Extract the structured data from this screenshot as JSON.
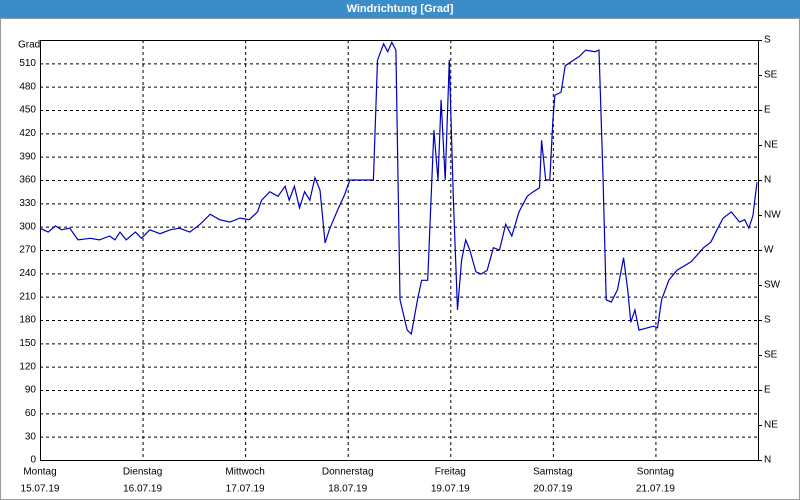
{
  "chart_data": {
    "type": "line",
    "title": "Windrichtung [Grad]",
    "y_label": "Grad",
    "xlim": [
      0,
      7
    ],
    "xticks": [
      {
        "value": 0,
        "label": "Montag",
        "date": "15.07.19"
      },
      {
        "value": 1,
        "label": "Dienstag",
        "date": "16.07.19"
      },
      {
        "value": 2,
        "label": "Mittwoch",
        "date": "17.07.19"
      },
      {
        "value": 3,
        "label": "Donnerstag",
        "date": "18.07.19"
      },
      {
        "value": 4,
        "label": "Freitag",
        "date": "19.07.19"
      },
      {
        "value": 5,
        "label": "Samstag",
        "date": "20.07.19"
      },
      {
        "value": 6,
        "label": "Sonntag",
        "date": "21.07.19"
      }
    ],
    "ylim": [
      0,
      540
    ],
    "yticks": [
      0,
      30,
      60,
      90,
      120,
      150,
      180,
      210,
      240,
      270,
      300,
      330,
      360,
      390,
      420,
      450,
      480,
      510
    ],
    "y2lim": [
      0,
      540
    ],
    "y2ticks": [
      {
        "value": 0,
        "label": "N"
      },
      {
        "value": 45,
        "label": "NE"
      },
      {
        "value": 90,
        "label": "E"
      },
      {
        "value": 135,
        "label": "SE"
      },
      {
        "value": 180,
        "label": "S"
      },
      {
        "value": 225,
        "label": "SW"
      },
      {
        "value": 270,
        "label": "W"
      },
      {
        "value": 315,
        "label": "NW"
      },
      {
        "value": 360,
        "label": "N"
      },
      {
        "value": 405,
        "label": "NE"
      },
      {
        "value": 450,
        "label": "E"
      },
      {
        "value": 495,
        "label": "SE"
      },
      {
        "value": 540,
        "label": "S"
      }
    ],
    "grid": true,
    "series": [
      {
        "color": "#0000c0",
        "x": [
          0.0,
          0.08,
          0.15,
          0.21,
          0.29,
          0.37,
          0.49,
          0.58,
          0.68,
          0.73,
          0.78,
          0.84,
          0.93,
          0.99,
          1.07,
          1.17,
          1.27,
          1.36,
          1.46,
          1.56,
          1.66,
          1.75,
          1.85,
          1.95,
          2.04,
          2.12,
          2.16,
          2.24,
          2.32,
          2.39,
          2.43,
          2.48,
          2.53,
          2.58,
          2.63,
          2.68,
          2.73,
          2.78,
          2.82,
          2.9,
          2.97,
          3.02,
          3.25,
          3.29,
          3.35,
          3.39,
          3.43,
          3.47,
          3.51,
          3.58,
          3.62,
          3.68,
          3.72,
          3.78,
          3.84,
          3.88,
          3.91,
          3.95,
          3.99,
          4.03,
          4.07,
          4.11,
          4.15,
          4.19,
          4.25,
          4.3,
          4.36,
          4.42,
          4.48,
          4.54,
          4.6,
          4.67,
          4.75,
          4.81,
          4.87,
          4.89,
          4.93,
          4.97,
          5.0,
          5.02,
          5.08,
          5.12,
          5.2,
          5.26,
          5.32,
          5.41,
          5.45,
          5.49,
          5.52,
          5.57,
          5.63,
          5.69,
          5.73,
          5.76,
          5.8,
          5.84,
          5.98,
          6.02,
          6.06,
          6.13,
          6.21,
          6.35,
          6.47,
          6.54,
          6.6,
          6.66,
          6.74,
          6.82,
          6.87,
          6.91,
          6.95,
          6.99
        ],
        "values": [
          298,
          293,
          301,
          296,
          298,
          283,
          285,
          283,
          288,
          283,
          293,
          283,
          293,
          285,
          296,
          291,
          296,
          298,
          293,
          303,
          316,
          309,
          306,
          311,
          309,
          319,
          334,
          345,
          339,
          352,
          334,
          352,
          324,
          345,
          334,
          363,
          347,
          279,
          296,
          321,
          341,
          360,
          360,
          514,
          535,
          525,
          537,
          527,
          206,
          167,
          162,
          206,
          231,
          231,
          424,
          360,
          463,
          360,
          514,
          334,
          193,
          257,
          283,
          270,
          242,
          239,
          244,
          273,
          270,
          303,
          288,
          319,
          339,
          345,
          350,
          411,
          360,
          360,
          437,
          469,
          473,
          507,
          514,
          519,
          527,
          525,
          527,
          360,
          206,
          203,
          219,
          260,
          219,
          177,
          193,
          167,
          172,
          170,
          206,
          231,
          244,
          255,
          273,
          280,
          296,
          311,
          319,
          306,
          309,
          298,
          314,
          357
        ]
      }
    ]
  }
}
